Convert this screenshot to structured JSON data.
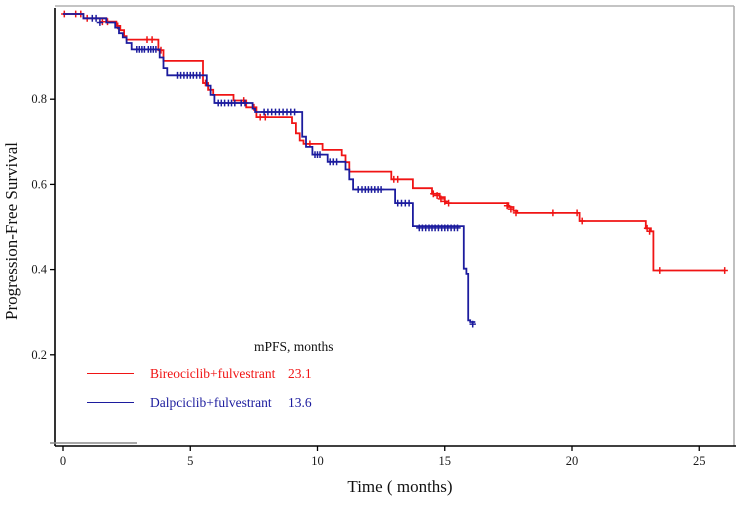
{
  "chart_data": {
    "type": "line",
    "subtype": "kaplan-meier-step",
    "title": "",
    "xlabel": "Time ( months)",
    "ylabel": "Progression-Free Survival",
    "xlim": [
      0,
      26.5
    ],
    "ylim": [
      0,
      1.0
    ],
    "grid": false,
    "x_ticks": [
      0,
      5,
      10,
      15,
      20,
      25
    ],
    "x_tick_labels": [
      "0",
      "5",
      "10",
      "15",
      "20",
      "25"
    ],
    "y_ticks": [
      0.2,
      0.4,
      0.6,
      0.8
    ],
    "y_tick_labels": [
      "0.2",
      "0.4",
      "0.6",
      "0.8"
    ],
    "legend_header": "mPFS, months",
    "legend_position": "inside-bottom-left",
    "colors": {
      "series_red": "#f01414",
      "series_blue": "#1c1c9e",
      "spine": "#000000",
      "box_border_grey": "#b0b0b0",
      "artifact_line_grey": "#8c8c8c",
      "tick_text": "#1a1a1a"
    },
    "series": [
      {
        "name": "Bireociclib+fulvestrant",
        "mpfs": "23.1",
        "color": "#f01414",
        "end_t": 26.0,
        "steps": [
          [
            0,
            1.0
          ],
          [
            0.8,
            0.99
          ],
          [
            1.7,
            0.982
          ],
          [
            2.1,
            0.972
          ],
          [
            2.25,
            0.962
          ],
          [
            2.4,
            0.948
          ],
          [
            2.5,
            0.94
          ],
          [
            3.75,
            0.915
          ],
          [
            3.95,
            0.89
          ],
          [
            5.5,
            0.838
          ],
          [
            5.7,
            0.822
          ],
          [
            5.9,
            0.81
          ],
          [
            6.7,
            0.797
          ],
          [
            7.2,
            0.781
          ],
          [
            7.6,
            0.758
          ],
          [
            9.0,
            0.744
          ],
          [
            9.15,
            0.72
          ],
          [
            9.3,
            0.703
          ],
          [
            9.45,
            0.695
          ],
          [
            10.2,
            0.681
          ],
          [
            10.95,
            0.668
          ],
          [
            11.1,
            0.652
          ],
          [
            11.25,
            0.63
          ],
          [
            12.9,
            0.612
          ],
          [
            13.75,
            0.591
          ],
          [
            14.5,
            0.578
          ],
          [
            14.8,
            0.57
          ],
          [
            15.0,
            0.56
          ],
          [
            15.05,
            0.556
          ],
          [
            17.5,
            0.547
          ],
          [
            17.7,
            0.538
          ],
          [
            17.85,
            0.533
          ],
          [
            20.3,
            0.514
          ],
          [
            22.9,
            0.497
          ],
          [
            23.1,
            0.49
          ],
          [
            23.2,
            0.398
          ]
        ],
        "censors": [
          [
            0.05,
            1.0
          ],
          [
            0.5,
            1.0
          ],
          [
            0.7,
            1.0
          ],
          [
            0.95,
            0.99
          ],
          [
            1.55,
            0.982
          ],
          [
            1.75,
            0.982
          ],
          [
            2.15,
            0.972
          ],
          [
            3.3,
            0.94
          ],
          [
            3.5,
            0.94
          ],
          [
            3.85,
            0.915
          ],
          [
            5.6,
            0.838
          ],
          [
            7.1,
            0.797
          ],
          [
            7.5,
            0.781
          ],
          [
            7.75,
            0.758
          ],
          [
            7.95,
            0.758
          ],
          [
            9.7,
            0.695
          ],
          [
            13.0,
            0.612
          ],
          [
            13.15,
            0.612
          ],
          [
            14.55,
            0.578
          ],
          [
            14.7,
            0.574
          ],
          [
            14.85,
            0.566
          ],
          [
            15.0,
            0.56
          ],
          [
            15.15,
            0.556
          ],
          [
            17.45,
            0.55
          ],
          [
            17.6,
            0.542
          ],
          [
            17.8,
            0.533
          ],
          [
            19.25,
            0.533
          ],
          [
            20.2,
            0.533
          ],
          [
            20.4,
            0.514
          ],
          [
            22.95,
            0.497
          ],
          [
            23.05,
            0.49
          ],
          [
            23.45,
            0.398
          ],
          [
            26.0,
            0.398
          ]
        ]
      },
      {
        "name": "Dalpciclib+fulvestrant",
        "mpfs": "13.6",
        "color": "#1c1c9e",
        "end_t": 16.2,
        "steps": [
          [
            0,
            1.0
          ],
          [
            0.8,
            0.99
          ],
          [
            1.7,
            0.98
          ],
          [
            2.05,
            0.968
          ],
          [
            2.2,
            0.955
          ],
          [
            2.35,
            0.945
          ],
          [
            2.5,
            0.932
          ],
          [
            2.7,
            0.917
          ],
          [
            3.8,
            0.898
          ],
          [
            3.95,
            0.873
          ],
          [
            4.1,
            0.856
          ],
          [
            5.65,
            0.832
          ],
          [
            5.8,
            0.81
          ],
          [
            5.95,
            0.791
          ],
          [
            7.45,
            0.778
          ],
          [
            7.55,
            0.77
          ],
          [
            9.4,
            0.712
          ],
          [
            9.55,
            0.688
          ],
          [
            9.8,
            0.67
          ],
          [
            10.4,
            0.653
          ],
          [
            11.1,
            0.635
          ],
          [
            11.25,
            0.612
          ],
          [
            11.4,
            0.588
          ],
          [
            13.05,
            0.556
          ],
          [
            13.75,
            0.502
          ],
          [
            15.75,
            0.402
          ],
          [
            15.85,
            0.39
          ],
          [
            15.92,
            0.281
          ],
          [
            16.0,
            0.277
          ]
        ],
        "censors": [
          [
            1.15,
            0.99
          ],
          [
            1.3,
            0.99
          ],
          [
            1.45,
            0.98
          ],
          [
            2.9,
            0.917
          ],
          [
            3.0,
            0.917
          ],
          [
            3.1,
            0.917
          ],
          [
            3.2,
            0.917
          ],
          [
            3.35,
            0.917
          ],
          [
            3.45,
            0.917
          ],
          [
            3.55,
            0.917
          ],
          [
            3.65,
            0.917
          ],
          [
            4.5,
            0.856
          ],
          [
            4.62,
            0.856
          ],
          [
            4.75,
            0.856
          ],
          [
            4.88,
            0.856
          ],
          [
            5.0,
            0.856
          ],
          [
            5.12,
            0.856
          ],
          [
            5.25,
            0.856
          ],
          [
            5.38,
            0.856
          ],
          [
            6.1,
            0.791
          ],
          [
            6.22,
            0.791
          ],
          [
            6.35,
            0.791
          ],
          [
            6.5,
            0.791
          ],
          [
            6.62,
            0.791
          ],
          [
            6.75,
            0.791
          ],
          [
            7.0,
            0.791
          ],
          [
            7.15,
            0.791
          ],
          [
            7.9,
            0.77
          ],
          [
            8.05,
            0.77
          ],
          [
            8.2,
            0.77
          ],
          [
            8.35,
            0.77
          ],
          [
            8.5,
            0.77
          ],
          [
            8.65,
            0.77
          ],
          [
            8.8,
            0.77
          ],
          [
            8.95,
            0.77
          ],
          [
            9.1,
            0.77
          ],
          [
            9.9,
            0.67
          ],
          [
            10.0,
            0.67
          ],
          [
            10.1,
            0.67
          ],
          [
            10.5,
            0.653
          ],
          [
            10.62,
            0.653
          ],
          [
            10.75,
            0.653
          ],
          [
            11.6,
            0.588
          ],
          [
            11.75,
            0.588
          ],
          [
            11.88,
            0.588
          ],
          [
            12.0,
            0.588
          ],
          [
            12.12,
            0.588
          ],
          [
            12.25,
            0.588
          ],
          [
            12.38,
            0.588
          ],
          [
            12.5,
            0.588
          ],
          [
            13.15,
            0.556
          ],
          [
            13.3,
            0.556
          ],
          [
            13.45,
            0.556
          ],
          [
            13.6,
            0.556
          ],
          [
            14.0,
            0.498
          ],
          [
            14.12,
            0.498
          ],
          [
            14.25,
            0.498
          ],
          [
            14.38,
            0.498
          ],
          [
            14.5,
            0.498
          ],
          [
            14.62,
            0.498
          ],
          [
            14.75,
            0.498
          ],
          [
            14.88,
            0.498
          ],
          [
            15.0,
            0.498
          ],
          [
            15.12,
            0.498
          ],
          [
            15.25,
            0.498
          ],
          [
            15.38,
            0.498
          ],
          [
            15.5,
            0.498
          ],
          [
            16.1,
            0.272
          ]
        ]
      }
    ]
  }
}
